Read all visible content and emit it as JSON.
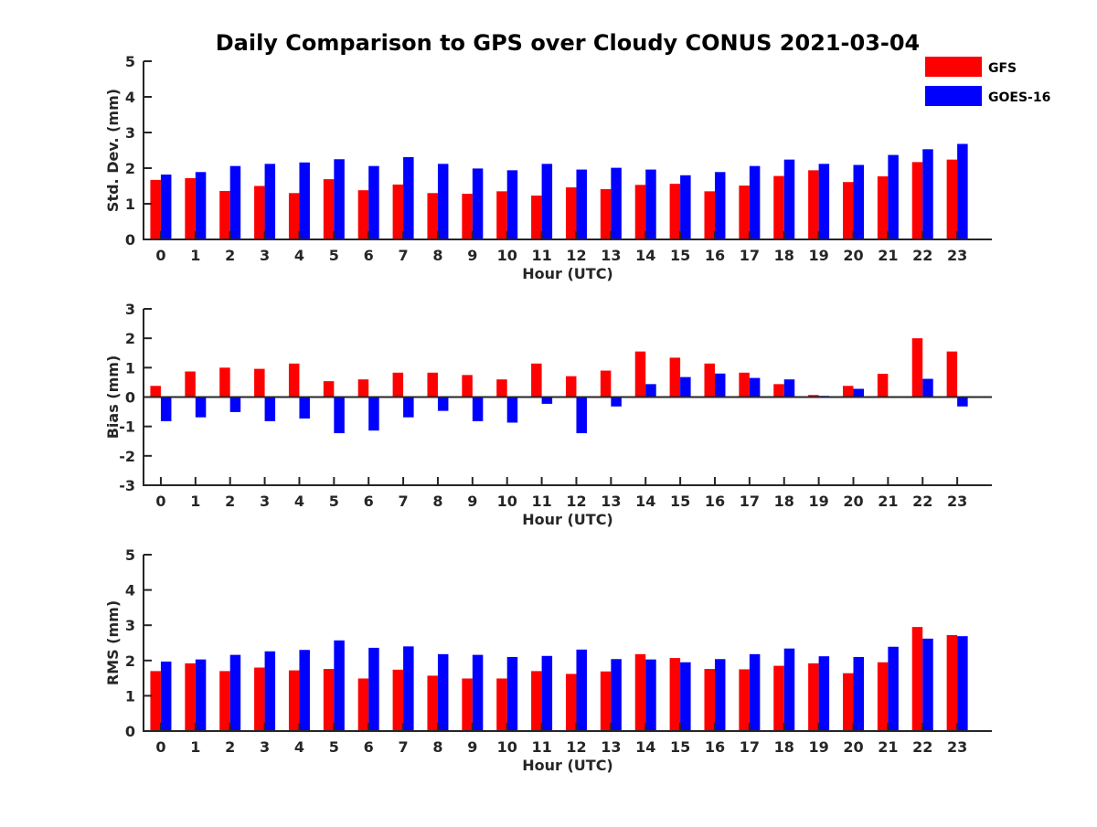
{
  "chart_data": {
    "title": "Daily Comparison to GPS over Cloudy CONUS 2021-03-04",
    "type": "bar",
    "legend": {
      "placement": "top-right",
      "entries": [
        {
          "name": "GFS",
          "color": "#ff0000"
        },
        {
          "name": "GOES-16",
          "color": "#0000ff"
        }
      ]
    },
    "panels": [
      {
        "type": "bar",
        "xlabel": "Hour (UTC)",
        "ylabel": "Std. Dev. (mm)",
        "ylim": [
          0,
          5
        ],
        "yticks": [
          0,
          1,
          2,
          3,
          4,
          5
        ],
        "categories": [
          "0",
          "1",
          "2",
          "3",
          "4",
          "5",
          "6",
          "7",
          "8",
          "9",
          "10",
          "11",
          "12",
          "13",
          "14",
          "15",
          "16",
          "17",
          "18",
          "19",
          "20",
          "21",
          "22",
          "23"
        ],
        "series": [
          {
            "name": "GFS",
            "values": [
              1.67,
              1.72,
              1.36,
              1.5,
              1.3,
              1.69,
              1.38,
              1.54,
              1.3,
              1.28,
              1.35,
              1.23,
              1.46,
              1.41,
              1.53,
              1.56,
              1.35,
              1.51,
              1.78,
              1.94,
              1.61,
              1.77,
              2.17,
              2.24
            ]
          },
          {
            "name": "GOES-16",
            "values": [
              1.82,
              1.89,
              2.06,
              2.12,
              2.16,
              2.25,
              2.06,
              2.31,
              2.12,
              1.99,
              1.94,
              2.12,
              1.96,
              2.01,
              1.96,
              1.8,
              1.89,
              2.06,
              2.24,
              2.12,
              2.09,
              2.37,
              2.53,
              2.68
            ]
          }
        ]
      },
      {
        "type": "bar",
        "xlabel": "Hour (UTC)",
        "ylabel": "Bias (mm)",
        "ylim": [
          -3,
          3
        ],
        "yticks": [
          -3,
          -2,
          -1,
          0,
          1,
          2,
          3
        ],
        "categories": [
          "0",
          "1",
          "2",
          "3",
          "4",
          "5",
          "6",
          "7",
          "8",
          "9",
          "10",
          "11",
          "12",
          "13",
          "14",
          "15",
          "16",
          "17",
          "18",
          "19",
          "20",
          "21",
          "22",
          "23"
        ],
        "series": [
          {
            "name": "GFS",
            "values": [
              0.38,
              0.87,
              1.0,
              0.96,
              1.14,
              0.54,
              0.6,
              0.83,
              0.83,
              0.75,
              0.6,
              1.14,
              0.71,
              0.9,
              1.55,
              1.34,
              1.14,
              0.83,
              0.44,
              0.07,
              0.38,
              0.79,
              2.0,
              1.55
            ]
          },
          {
            "name": "GOES-16",
            "values": [
              -0.82,
              -0.69,
              -0.51,
              -0.82,
              -0.73,
              -1.23,
              -1.14,
              -0.69,
              -0.47,
              -0.82,
              -0.87,
              -0.23,
              -1.23,
              -0.32,
              0.44,
              0.68,
              0.8,
              0.65,
              0.6,
              0.04,
              0.28,
              0.02,
              0.62,
              -0.32
            ]
          }
        ]
      },
      {
        "type": "bar",
        "xlabel": "Hour (UTC)",
        "ylabel": "RMS (mm)",
        "ylim": [
          0,
          5
        ],
        "yticks": [
          0,
          1,
          2,
          3,
          4,
          5
        ],
        "categories": [
          "0",
          "1",
          "2",
          "3",
          "4",
          "5",
          "6",
          "7",
          "8",
          "9",
          "10",
          "11",
          "12",
          "13",
          "14",
          "15",
          "16",
          "17",
          "18",
          "19",
          "20",
          "21",
          "22",
          "23"
        ],
        "series": [
          {
            "name": "GFS",
            "values": [
              1.7,
              1.92,
              1.7,
              1.8,
              1.72,
              1.76,
              1.49,
              1.74,
              1.57,
              1.49,
              1.49,
              1.7,
              1.62,
              1.69,
              2.18,
              2.07,
              1.76,
              1.75,
              1.85,
              1.92,
              1.64,
              1.95,
              2.95,
              2.72
            ]
          },
          {
            "name": "GOES-16",
            "values": [
              1.97,
              2.03,
              2.16,
              2.26,
              2.3,
              2.57,
              2.36,
              2.4,
              2.18,
              2.16,
              2.1,
              2.13,
              2.31,
              2.04,
              2.03,
              1.95,
              2.04,
              2.18,
              2.34,
              2.12,
              2.1,
              2.39,
              2.62,
              2.69
            ]
          }
        ]
      }
    ]
  }
}
